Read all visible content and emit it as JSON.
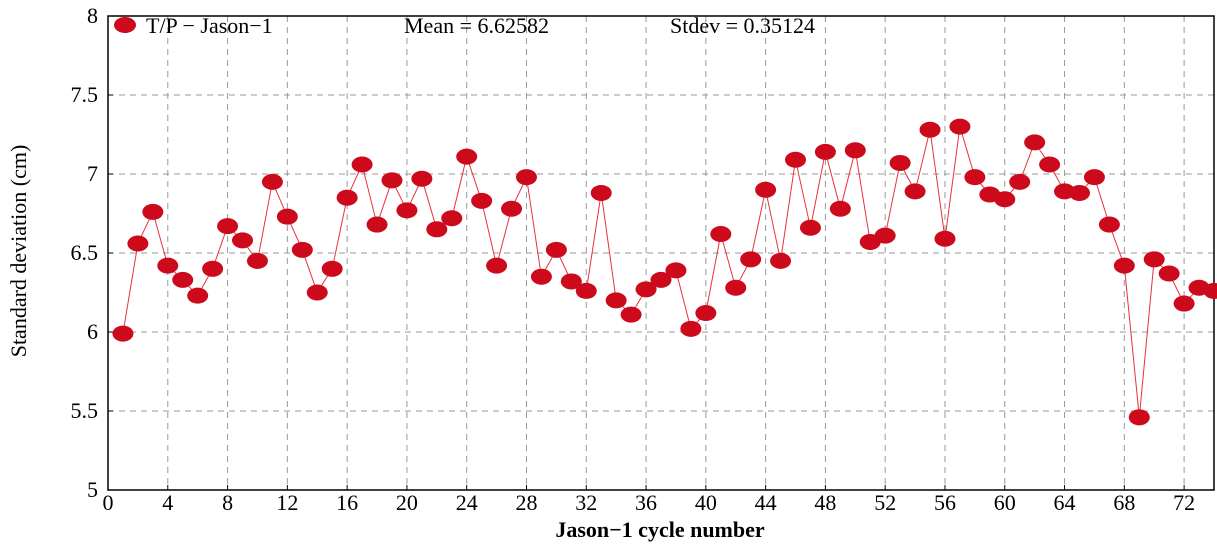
{
  "chart_data": {
    "type": "line",
    "xlabel": "Jason−1 cycle number",
    "ylabel": "Standard deviation (cm)",
    "xlim": [
      0,
      74
    ],
    "ylim": [
      5,
      8
    ],
    "xticks": [
      "0",
      "4",
      "8",
      "12",
      "16",
      "20",
      "24",
      "28",
      "32",
      "36",
      "40",
      "44",
      "48",
      "52",
      "56",
      "60",
      "64",
      "68",
      "72"
    ],
    "yticks": [
      "5",
      "5.5",
      "6",
      "6.5",
      "7",
      "7.5",
      "8"
    ],
    "grid": true,
    "legend": "top-left",
    "annotations": {
      "mean": "Mean = 6.62582",
      "stdev": "Stdev = 0.35124"
    },
    "series": [
      {
        "name": "T/P − Jason−1",
        "color": "#cc0a1c",
        "x": [
          1,
          2,
          3,
          4,
          5,
          6,
          7,
          8,
          9,
          10,
          11,
          12,
          13,
          14,
          15,
          16,
          17,
          18,
          19,
          20,
          21,
          22,
          23,
          24,
          25,
          26,
          27,
          28,
          29,
          30,
          31,
          32,
          33,
          34,
          35,
          36,
          37,
          38,
          39,
          40,
          41,
          42,
          43,
          44,
          45,
          46,
          47,
          48,
          49,
          50,
          51,
          52,
          53,
          54,
          55,
          56,
          57,
          58,
          59,
          60,
          61,
          62,
          63,
          64,
          65,
          66,
          67,
          68,
          69,
          70,
          71,
          72,
          73,
          74
        ],
        "y": [
          5.99,
          6.56,
          6.76,
          6.42,
          6.33,
          6.23,
          6.4,
          6.67,
          6.58,
          6.45,
          6.95,
          6.73,
          6.52,
          6.25,
          6.4,
          6.85,
          7.06,
          6.68,
          6.96,
          6.77,
          6.97,
          6.65,
          6.72,
          7.11,
          6.83,
          6.42,
          6.78,
          6.98,
          6.35,
          6.52,
          6.32,
          6.26,
          6.88,
          6.2,
          6.11,
          6.27,
          6.33,
          6.39,
          6.02,
          6.12,
          6.62,
          6.28,
          6.46,
          6.9,
          6.45,
          7.09,
          6.66,
          7.14,
          6.78,
          7.15,
          6.57,
          6.61,
          7.07,
          6.89,
          7.28,
          6.59,
          7.3,
          6.98,
          6.87,
          6.84,
          6.95,
          7.2,
          7.06,
          6.89,
          6.88,
          6.98,
          6.68,
          6.42,
          5.46,
          6.46,
          6.37,
          6.18,
          6.28,
          6.26
        ]
      }
    ]
  }
}
